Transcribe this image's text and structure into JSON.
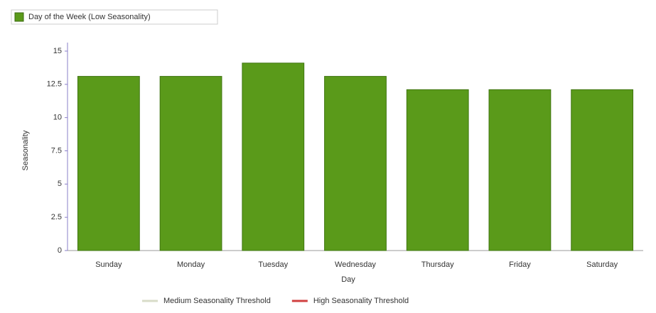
{
  "chart_data": {
    "type": "bar",
    "x_label": "Day",
    "y_label": "Seasonality",
    "categories": [
      "Sunday",
      "Monday",
      "Tuesday",
      "Wednesday",
      "Thursday",
      "Friday",
      "Saturday"
    ],
    "series": [
      {
        "name": "Day of the Week (Low Seasonality)",
        "color": "#5a9a1a",
        "values": [
          13.1,
          13.1,
          14.1,
          13.1,
          12.1,
          12.1,
          12.1
        ]
      }
    ],
    "threshold_legend": [
      {
        "name": "Medium Seasonality Threshold",
        "color": "#d8dcc8"
      },
      {
        "name": "High Seasonality Threshold",
        "color": "#d04040"
      }
    ],
    "ylim": [
      0,
      15
    ],
    "yticks": [
      0,
      2.5,
      5,
      7.5,
      10,
      12.5,
      15
    ],
    "grid": false
  }
}
